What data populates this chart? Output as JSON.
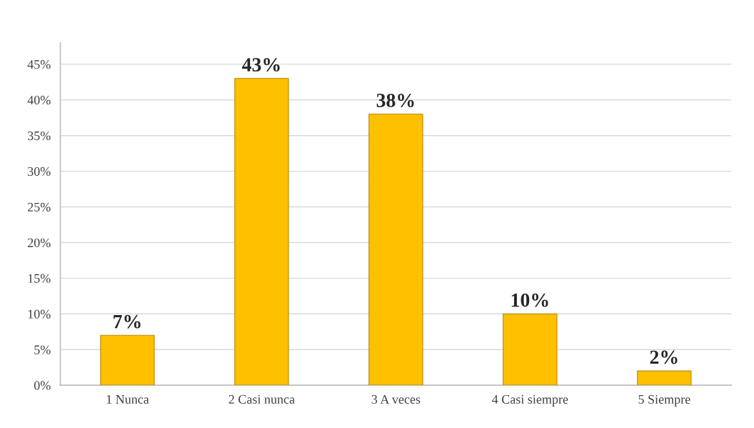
{
  "chart_data": {
    "type": "bar",
    "categories": [
      "1 Nunca",
      "2 Casi nunca",
      "3 A veces",
      "4 Casi siempre",
      "5 Siempre"
    ],
    "values": [
      7,
      43,
      38,
      10,
      2
    ],
    "value_labels": [
      "7%",
      "43%",
      "38%",
      "10%",
      "2%"
    ],
    "color": "#ffc000",
    "ylim": [
      0,
      48
    ],
    "yticks": [
      {
        "value": 0,
        "label": "0%"
      },
      {
        "value": 5,
        "label": "5%"
      },
      {
        "value": 10,
        "label": "10%"
      },
      {
        "value": 15,
        "label": "15%"
      },
      {
        "value": 20,
        "label": "20%"
      },
      {
        "value": 25,
        "label": "25%"
      },
      {
        "value": 30,
        "label": "30%"
      },
      {
        "value": 35,
        "label": "35%"
      },
      {
        "value": 40,
        "label": "40%"
      },
      {
        "value": 45,
        "label": "45%"
      }
    ],
    "grid": "y"
  }
}
